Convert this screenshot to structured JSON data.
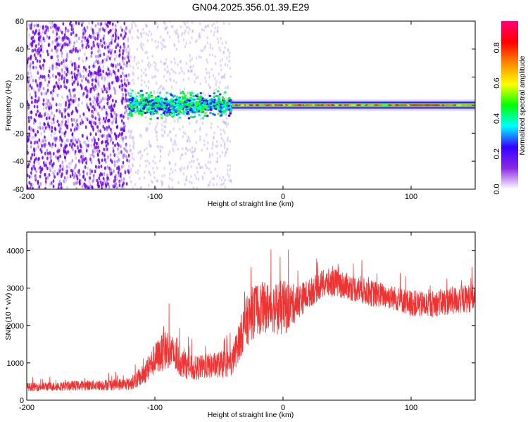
{
  "figure_title": "GN04.2025.356.01.39.E29",
  "chart_data": [
    {
      "type": "heatmap",
      "name": "spectrogram",
      "xlabel": "Height of straight line (km)",
      "ylabel": "Frequency (Hz)",
      "xlim": [
        -200,
        150
      ],
      "ylim": [
        -60,
        60
      ],
      "xticks": [
        -200,
        -100,
        0,
        100
      ],
      "yticks": [
        60,
        40,
        20,
        0,
        -20,
        -40,
        -60
      ],
      "xtick_labels": [
        "-200",
        "-100",
        "0",
        "100"
      ],
      "ytick_labels": [
        "60",
        "40",
        "20",
        "0",
        "-20",
        "-40",
        "-60"
      ],
      "colorbar": {
        "label": "Normalized spectral amplitude",
        "range": [
          0.0,
          0.95
        ],
        "ticks": [
          0.0,
          0.2,
          0.4,
          0.6,
          0.8
        ],
        "tick_labels": [
          "0.0",
          "0.2",
          "0.4",
          "0.6",
          "0.8"
        ],
        "colormap": [
          "#ffffff",
          "#8a2be2",
          "#3300ff",
          "#00ffff",
          "#00ff00",
          "#ffff00",
          "#ff8800",
          "#ff0000",
          "#ff0077"
        ]
      },
      "regions": [
        {
          "x_range": [
            -200,
            -120
          ],
          "description_level": "broadband noise",
          "freq_spread": [
            -60,
            60
          ],
          "amplitude": 0.1
        },
        {
          "x_range": [
            -120,
            -40
          ],
          "description_level": "central band with sparse noise",
          "freq_spread": [
            -6,
            6
          ],
          "amplitude": 0.25
        },
        {
          "x_range": [
            -40,
            150
          ],
          "description_level": "narrow carrier at 0 Hz",
          "freq_spread": [
            -2,
            2
          ],
          "amplitude": 0.85
        }
      ]
    },
    {
      "type": "line",
      "name": "snr",
      "xlabel": "Height of straight line (km)",
      "ylabel": "SNR (10 * v/v)",
      "xlim": [
        -200,
        150
      ],
      "ylim": [
        0,
        4500
      ],
      "xticks": [
        -200,
        -100,
        0,
        100
      ],
      "yticks": [
        0,
        1000,
        2000,
        3000,
        4000
      ],
      "xtick_labels": [
        "-200",
        "-100",
        "0",
        "100"
      ],
      "ytick_labels": [
        "0",
        "1000",
        "2000",
        "3000",
        "4000"
      ],
      "color": "#ee3333",
      "envelope": {
        "x": [
          -200,
          -150,
          -120,
          -110,
          -100,
          -90,
          -80,
          -70,
          -60,
          -50,
          -40,
          -35,
          -30,
          -25,
          -20,
          -10,
          0,
          10,
          20,
          30,
          40,
          50,
          60,
          70,
          80,
          90,
          100,
          110,
          120,
          130,
          140,
          150
        ],
        "mean": [
          350,
          400,
          430,
          650,
          1100,
          1400,
          1000,
          850,
          900,
          950,
          1000,
          1500,
          2000,
          2300,
          2450,
          2500,
          2450,
          2600,
          2850,
          3100,
          3150,
          3050,
          2950,
          2850,
          2800,
          2700,
          2600,
          2550,
          2600,
          2650,
          2700,
          2750
        ],
        "spread": [
          200,
          250,
          300,
          500,
          800,
          1000,
          700,
          600,
          600,
          650,
          700,
          900,
          1200,
          1300,
          1300,
          1200,
          1400,
          900,
          700,
          700,
          700,
          650,
          650,
          650,
          600,
          600,
          650,
          650,
          650,
          700,
          700,
          700
        ]
      }
    }
  ]
}
